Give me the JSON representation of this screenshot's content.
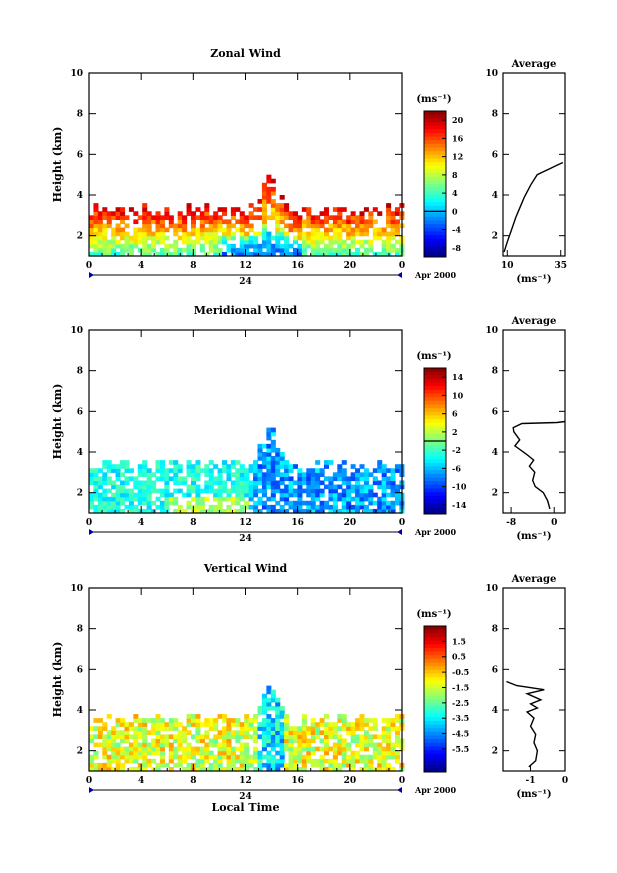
{
  "chart_data": [
    {
      "type": "heatmap",
      "title": "Zonal Wind",
      "xlabel": "",
      "ylabel": "Height (km)",
      "xlim": [
        0,
        24
      ],
      "ylim": [
        1,
        10
      ],
      "xticks": [
        "0",
        "4",
        "8",
        "12",
        "16",
        "20",
        "0"
      ],
      "yticks": [
        "2",
        "4",
        "6",
        "8",
        "10"
      ],
      "date_label": "24",
      "date_suffix": "Apr 2000",
      "colorbar": {
        "unit": "(ms⁻¹)",
        "range": [
          -10,
          22
        ],
        "ticks": [
          "20",
          "16",
          "12",
          "8",
          "4",
          "0",
          "-4",
          "-8"
        ],
        "tick_values": [
          20,
          16,
          12,
          8,
          4,
          0,
          -4,
          -8
        ],
        "zero_line": 0
      },
      "field": {
        "t_range": [
          0,
          24
        ],
        "base_top": 3.2,
        "peak_time": 13.7,
        "peak_top": 5.3,
        "surface": 1.0
      },
      "profile": {
        "title": "Average",
        "xlabel": "(ms⁻¹)",
        "xticks": [
          "10",
          "35"
        ],
        "xtick_values": [
          10,
          35
        ],
        "xlim": [
          8,
          37
        ],
        "yticks": [
          "2",
          "4",
          "6",
          "8",
          "10"
        ],
        "points": [
          [
            8.5,
            1.2
          ],
          [
            10,
            1.7
          ],
          [
            12,
            2.3
          ],
          [
            14,
            2.9
          ],
          [
            16,
            3.4
          ],
          [
            18,
            3.9
          ],
          [
            21,
            4.5
          ],
          [
            24,
            5.0
          ],
          [
            27,
            5.15
          ],
          [
            30,
            5.3
          ],
          [
            33,
            5.45
          ],
          [
            36,
            5.6
          ]
        ]
      }
    },
    {
      "type": "heatmap",
      "title": "Meridional Wind",
      "xlabel": "",
      "ylabel": "Height (km)",
      "xlim": [
        0,
        24
      ],
      "ylim": [
        1,
        10
      ],
      "xticks": [
        "0",
        "4",
        "8",
        "12",
        "16",
        "20",
        "0"
      ],
      "yticks": [
        "2",
        "4",
        "6",
        "8",
        "10"
      ],
      "date_label": "24",
      "date_suffix": "Apr 2000",
      "colorbar": {
        "unit": "(ms⁻¹)",
        "range": [
          -16,
          16
        ],
        "ticks": [
          "14",
          "10",
          "6",
          "2",
          "-2",
          "-6",
          "-10",
          "-14"
        ],
        "tick_values": [
          14,
          10,
          6,
          2,
          -2,
          -6,
          -10,
          -14
        ],
        "zero_line": 0
      },
      "field": {
        "t_range": [
          0,
          24
        ],
        "base_top": 3.3,
        "peak_time": 13.7,
        "peak_top": 5.4,
        "surface": 1.0
      },
      "profile": {
        "title": "Average",
        "xlabel": "(ms⁻¹)",
        "xticks": [
          "-8",
          "0"
        ],
        "xtick_values": [
          -8,
          0
        ],
        "xlim": [
          -9.5,
          2
        ],
        "yticks": [
          "2",
          "4",
          "6",
          "8",
          "10"
        ],
        "points": [
          [
            -0.8,
            1.2
          ],
          [
            -1.2,
            1.6
          ],
          [
            -2,
            2
          ],
          [
            -3.5,
            2.3
          ],
          [
            -4,
            2.6
          ],
          [
            -3.6,
            3.0
          ],
          [
            -4.6,
            3.3
          ],
          [
            -3.8,
            3.6
          ],
          [
            -5.2,
            3.9
          ],
          [
            -7.3,
            4.3
          ],
          [
            -6.4,
            4.6
          ],
          [
            -7.5,
            5.0
          ],
          [
            -7.6,
            5.2
          ],
          [
            -6,
            5.4
          ],
          [
            0.5,
            5.45
          ],
          [
            2,
            5.5
          ]
        ]
      }
    },
    {
      "type": "heatmap",
      "title": "Vertical Wind",
      "xlabel": "Local Time",
      "ylabel": "Height (km)",
      "xlim": [
        0,
        24
      ],
      "ylim": [
        1,
        10
      ],
      "xticks": [
        "0",
        "4",
        "8",
        "12",
        "16",
        "20",
        "0"
      ],
      "yticks": [
        "2",
        "4",
        "6",
        "8",
        "10"
      ],
      "date_label": "24",
      "date_suffix": "Apr 2000",
      "colorbar": {
        "unit": "(ms⁻¹)",
        "range": [
          -7,
          2.5
        ],
        "ticks": [
          "1.5",
          "0.5",
          "-0.5",
          "-1.5",
          "-2.5",
          "-3.5",
          "-4.5",
          "-5.5"
        ],
        "tick_values": [
          1.5,
          0.5,
          -0.5,
          -1.5,
          -2.5,
          -3.5,
          -4.5,
          -5.5
        ]
      },
      "field": {
        "t_range": [
          0,
          24
        ],
        "base_top": 3.5,
        "peak_time": 13.7,
        "peak_top": 5.4,
        "surface": 1.0
      },
      "profile": {
        "title": "Average",
        "xlabel": "(ms⁻¹)",
        "xticks": [
          "-1",
          "0"
        ],
        "xtick_values": [
          -1,
          0
        ],
        "xlim": [
          -1.8,
          0
        ],
        "yticks": [
          "2",
          "4",
          "6",
          "8",
          "10"
        ],
        "points": [
          [
            -1.05,
            1.2
          ],
          [
            -0.85,
            1.5
          ],
          [
            -0.8,
            2.0
          ],
          [
            -0.9,
            2.4
          ],
          [
            -0.85,
            2.8
          ],
          [
            -1.0,
            3.2
          ],
          [
            -0.9,
            3.6
          ],
          [
            -1.1,
            3.9
          ],
          [
            -0.8,
            4.1
          ],
          [
            -1.0,
            4.3
          ],
          [
            -0.7,
            4.5
          ],
          [
            -1.1,
            4.8
          ],
          [
            -0.6,
            5.0
          ],
          [
            -1.4,
            5.2
          ],
          [
            -1.7,
            5.4
          ]
        ]
      }
    }
  ]
}
